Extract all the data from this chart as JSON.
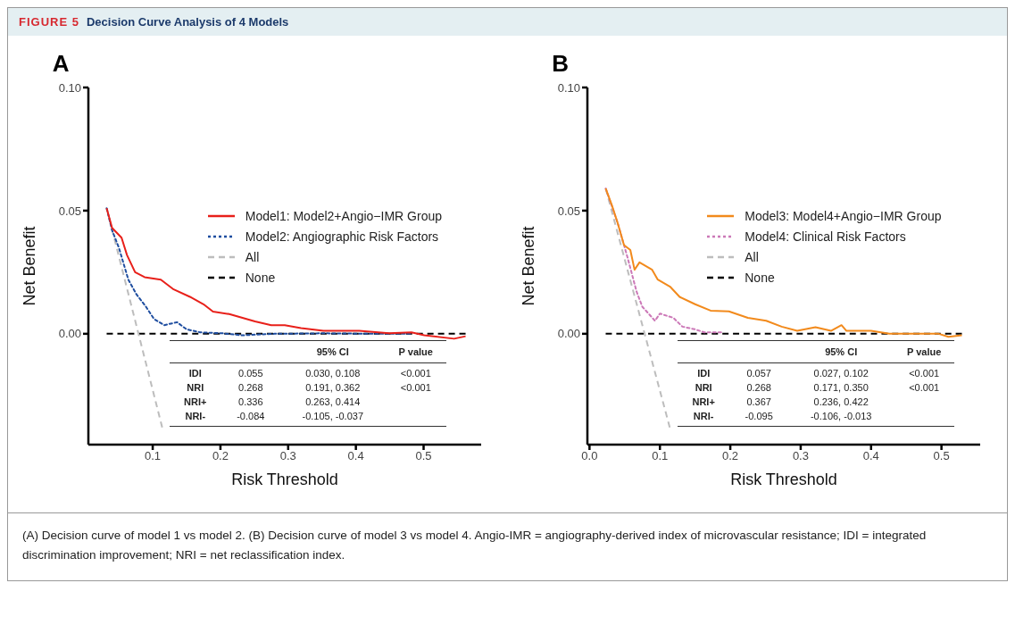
{
  "chart_data": [
    {
      "type": "line",
      "title": "A",
      "xlabel": "Risk Threshold",
      "ylabel": "Net Benefit",
      "xlim": [
        0.005,
        0.585
      ],
      "ylim": [
        -0.045,
        0.1
      ],
      "xticks": [
        0.1,
        0.2,
        0.3,
        0.4,
        0.5
      ],
      "yticks": [
        {
          "value": 0,
          "label": "0.00"
        },
        {
          "value": 0.05,
          "label": "0.05"
        },
        {
          "value": 0.1,
          "label": "0.10"
        }
      ],
      "legend": "right",
      "series": [
        {
          "name": "Model1: Model2+Angio−IMR Group",
          "color": "#e8201a",
          "line_style": "solid",
          "x": [
            0.032,
            0.04,
            0.054,
            0.062,
            0.074,
            0.088,
            0.112,
            0.131,
            0.155,
            0.175,
            0.189,
            0.213,
            0.251,
            0.275,
            0.295,
            0.319,
            0.352,
            0.405,
            0.449,
            0.482,
            0.501,
            0.545,
            0.562
          ],
          "values": [
            0.051,
            0.043,
            0.039,
            0.032,
            0.025,
            0.023,
            0.022,
            0.018,
            0.015,
            0.012,
            0.009,
            0.008,
            0.005,
            0.0035,
            0.0035,
            0.0023,
            0.0012,
            0.0012,
            0.0002,
            0.0006,
            -0.0006,
            -0.002,
            -0.001
          ]
        },
        {
          "name": "Model2: Angiographic Risk Factors",
          "color": "#1f4ea0",
          "line_style": "dotted",
          "x": [
            0.032,
            0.04,
            0.05,
            0.064,
            0.076,
            0.09,
            0.102,
            0.117,
            0.136,
            0.15,
            0.17,
            0.203,
            0.232,
            0.28,
            0.352,
            0.425,
            0.48
          ],
          "values": [
            0.051,
            0.042,
            0.035,
            0.022,
            0.016,
            0.011,
            0.006,
            0.0035,
            0.0047,
            0.0018,
            0.0006,
            0.0002,
            -0.0006,
            0,
            0.0002,
            0,
            0
          ]
        },
        {
          "name": "All",
          "color": "#bdbdbd",
          "line_style": "dashed",
          "x": [
            0.032,
            0.114
          ],
          "values": [
            0.051,
            -0.038
          ]
        },
        {
          "name": "None",
          "color": "#000000",
          "line_style": "dashed",
          "x": [
            0.032,
            0.562
          ],
          "values": [
            0,
            0
          ]
        }
      ],
      "annotations": [
        "FIGURE 5",
        "Decision Curve Analysis of 4 Models",
        "95% CI",
        "P value",
        "IDI",
        "0.055",
        "0.030, 0.108",
        "<0.001",
        "NRI",
        "0.268",
        "0.191, 0.362",
        "<0.001",
        "NRI+",
        "0.336",
        "0.263, 0.414",
        "NRI-",
        "-0.084",
        "-0.105, -0.037",
        "(A) Decision curve of model 1 vs model 2. (B) Decision curve of model 3 vs model 4. Angio-IMR = angiography-derived index of microvascular resistance; IDI = integrated discrimination improvement; NRI = net reclassification index."
      ]
    },
    {
      "type": "line",
      "title": "B",
      "xlabel": "Risk Threshold",
      "ylabel": "Net Benefit",
      "xlim": [
        -0.003,
        0.555
      ],
      "ylim": [
        -0.045,
        0.1
      ],
      "xticks": [
        {
          "value": 0,
          "label": "0.0"
        },
        0.1,
        0.2,
        0.3,
        0.4,
        0.5
      ],
      "yticks": [
        {
          "value": 0,
          "label": "0.00"
        },
        {
          "value": 0.05,
          "label": "0.05"
        },
        {
          "value": 0.1,
          "label": "0.10"
        }
      ],
      "legend": "right",
      "series": [
        {
          "name": "Model3: Model4+Angio−IMR Group",
          "color": "#f28a1c",
          "line_style": "solid",
          "x": [
            0.023,
            0.032,
            0.04,
            0.049,
            0.058,
            0.064,
            0.071,
            0.089,
            0.097,
            0.115,
            0.128,
            0.15,
            0.172,
            0.198,
            0.225,
            0.251,
            0.273,
            0.295,
            0.321,
            0.343,
            0.358,
            0.365,
            0.4,
            0.426,
            0.496,
            0.51,
            0.529
          ],
          "values": [
            0.059,
            0.052,
            0.045,
            0.036,
            0.034,
            0.026,
            0.029,
            0.026,
            0.022,
            0.019,
            0.015,
            0.012,
            0.0094,
            0.0091,
            0.0065,
            0.0053,
            0.0029,
            0.0012,
            0.0027,
            0.0012,
            0.0035,
            0.0012,
            0.0012,
            0,
            0,
            -0.0012,
            -0.0006
          ]
        },
        {
          "name": "Model4: Clinical Risk Factors",
          "color": "#cc79b8",
          "line_style": "dotted",
          "x": [
            0.023,
            0.04,
            0.054,
            0.067,
            0.075,
            0.093,
            0.1,
            0.119,
            0.132,
            0.15,
            0.163,
            0.187
          ],
          "values": [
            0.059,
            0.045,
            0.031,
            0.017,
            0.011,
            0.0053,
            0.0082,
            0.0065,
            0.0029,
            0.0018,
            0.0006,
            0.0006
          ]
        },
        {
          "name": "All",
          "color": "#bdbdbd",
          "line_style": "dashed",
          "x": [
            0.023,
            0.114
          ],
          "values": [
            0.059,
            -0.038
          ]
        },
        {
          "name": "None",
          "color": "#000000",
          "line_style": "dashed",
          "x": [
            0.023,
            0.529
          ],
          "values": [
            0,
            0
          ]
        }
      ],
      "annotations": [
        "95% CI",
        "P value",
        "IDI",
        "0.057",
        "0.027, 0.102",
        "<0.001",
        "NRI",
        "0.268",
        "0.171, 0.350",
        "<0.001",
        "NRI+",
        "0.367",
        "0.236, 0.422",
        "NRI-",
        "-0.095",
        "-0.106, -0.013"
      ]
    }
  ]
}
